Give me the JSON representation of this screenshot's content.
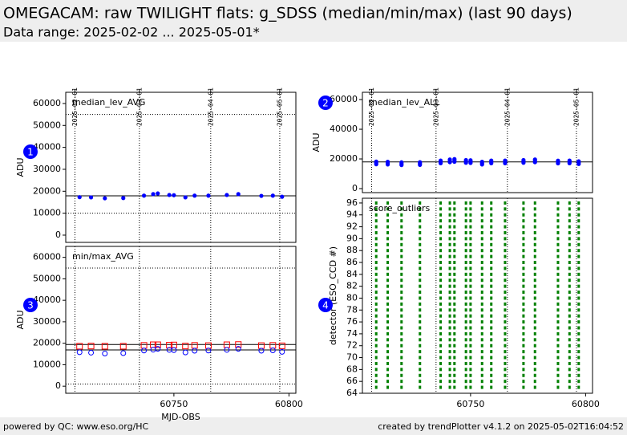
{
  "header": {
    "title": "OMEGACAM: raw TWILIGHT flats: g_SDSS (median/min/max) (last 90 days)",
    "subtitle": "Data range: 2025-02-02 ... 2025-05-01*"
  },
  "footer": {
    "left": "powered by QC: www.eso.org/HC",
    "right": "created by trendPlotter v4.1.2 on 2025-05-02T16:04:52"
  },
  "chart_data": [
    {
      "type": "scatter",
      "badge": "1",
      "label": "median_lev_AVG",
      "ylabel": "ADU",
      "xlim": [
        60703,
        60803
      ],
      "ylim": [
        -3300,
        65100
      ],
      "yticks": [
        0,
        10000,
        20000,
        30000,
        40000,
        50000,
        60000
      ],
      "top_ticks": [
        {
          "value": 60707,
          "label": "2025-02-01"
        },
        {
          "value": 60735,
          "label": "2025-03-01"
        },
        {
          "value": 60766,
          "label": "2025-04-01"
        },
        {
          "value": 60796,
          "label": "2025-05-01"
        }
      ],
      "hlines": [
        {
          "value": 17900,
          "style": "solid"
        },
        {
          "value": 55000,
          "style": "dotted"
        },
        {
          "value": 10000,
          "style": "dotted"
        }
      ],
      "x": [
        60709,
        60714,
        60720,
        60728,
        60737,
        60741,
        60743,
        60748,
        60750,
        60755,
        60759,
        60765,
        60773,
        60778,
        60788,
        60793,
        60797
      ],
      "series": [
        {
          "color": "#0000ff",
          "marker": "dot",
          "values": [
            17300,
            17200,
            16800,
            16900,
            18000,
            18700,
            19000,
            18300,
            18200,
            17200,
            18000,
            18000,
            18300,
            18700,
            17900,
            18000,
            17500
          ]
        }
      ]
    },
    {
      "type": "scatter",
      "badge": "2",
      "label": "median_lev_ALL",
      "ylabel": "ADU",
      "xlim": [
        60703,
        60803
      ],
      "ylim": [
        -2700,
        64900
      ],
      "yticks": [
        0,
        20000,
        40000,
        60000
      ],
      "top_ticks": [
        {
          "value": 60707,
          "label": "2025-02-01"
        },
        {
          "value": 60735,
          "label": "2025-03-01"
        },
        {
          "value": 60766,
          "label": "2025-04-01"
        },
        {
          "value": 60796,
          "label": "2025-05-01"
        }
      ],
      "hlines": [
        {
          "value": 18000,
          "style": "solid"
        }
      ],
      "x": [
        60709,
        60709,
        60709,
        60714,
        60714,
        60714,
        60720,
        60720,
        60720,
        60728,
        60728,
        60728,
        60737,
        60737,
        60737,
        60741,
        60741,
        60741,
        60743,
        60743,
        60743,
        60748,
        60748,
        60748,
        60750,
        60750,
        60750,
        60755,
        60755,
        60755,
        60759,
        60759,
        60759,
        60765,
        60765,
        60765,
        60773,
        60773,
        60773,
        60778,
        60778,
        60778,
        60788,
        60788,
        60788,
        60793,
        60793,
        60793,
        60797,
        60797,
        60797
      ],
      "series": [
        {
          "color": "#0000ff",
          "marker": "dot",
          "values": [
            16400,
            17300,
            18200,
            16300,
            17200,
            18100,
            15900,
            16800,
            17700,
            16000,
            16900,
            17800,
            17100,
            18000,
            18900,
            17800,
            18700,
            19600,
            18100,
            19000,
            19900,
            17400,
            18300,
            19200,
            17300,
            18200,
            19100,
            16300,
            17200,
            18100,
            17100,
            18000,
            18900,
            17100,
            18000,
            18900,
            17400,
            18300,
            19200,
            17800,
            18700,
            19600,
            17000,
            17900,
            18800,
            17100,
            18000,
            18900,
            16600,
            17500,
            18400
          ]
        }
      ]
    },
    {
      "type": "scatter",
      "badge": "3",
      "label": "min/max_AVG",
      "ylabel": "ADU",
      "xlabel": "MJD-OBS",
      "xlim": [
        60703,
        60803
      ],
      "ylim": [
        -3300,
        65100
      ],
      "yticks": [
        0,
        10000,
        20000,
        30000,
        40000,
        50000,
        60000
      ],
      "xticks": [
        60750,
        60800
      ],
      "vlines": [
        60707,
        60735,
        60766,
        60796
      ],
      "hlines": [
        {
          "value": 19400,
          "style": "solid"
        },
        {
          "value": 16900,
          "style": "solid"
        },
        {
          "value": 55000,
          "style": "dotted"
        },
        {
          "value": 1000,
          "style": "dotted"
        }
      ],
      "x": [
        60709,
        60714,
        60720,
        60728,
        60737,
        60741,
        60743,
        60748,
        60750,
        60755,
        60759,
        60765,
        60773,
        60778,
        60788,
        60793,
        60797
      ],
      "series": [
        {
          "color": "#ff0000",
          "marker": "square",
          "values": [
            18600,
            18700,
            18600,
            18600,
            19000,
            19300,
            19300,
            19100,
            19200,
            18700,
            19000,
            18900,
            19300,
            19400,
            18900,
            19000,
            18800
          ]
        },
        {
          "color": "#0000ff",
          "marker": "circle",
          "values": [
            15800,
            15600,
            15200,
            15400,
            16600,
            17000,
            17400,
            16900,
            16800,
            15700,
            16500,
            16600,
            16900,
            17400,
            16500,
            16700,
            16000
          ]
        }
      ]
    },
    {
      "type": "raster",
      "badge": "4",
      "label": "score_outliers",
      "ylabel": "detector (ESO_CCD #)",
      "color": "#008000",
      "xlim": [
        60703,
        60803
      ],
      "ylim": [
        64,
        96.8
      ],
      "yticks": [
        64,
        66,
        68,
        70,
        72,
        74,
        76,
        78,
        80,
        82,
        84,
        86,
        88,
        90,
        92,
        94,
        96
      ],
      "xticks": [
        60750,
        60800
      ],
      "vlines": [
        60707,
        60735,
        60766,
        60796
      ],
      "x": [
        60709,
        60714,
        60720,
        60728,
        60737,
        60741,
        60743,
        60748,
        60750,
        60755,
        60759,
        60765,
        60773,
        60778,
        60788,
        60793,
        60797
      ],
      "detectors": [
        65,
        66,
        67,
        68,
        69,
        70,
        71,
        72,
        73,
        74,
        75,
        76,
        77,
        78,
        79,
        80,
        81,
        82,
        83,
        84,
        85,
        86,
        87,
        88,
        89,
        90,
        91,
        92,
        93,
        94,
        95,
        96
      ]
    }
  ]
}
